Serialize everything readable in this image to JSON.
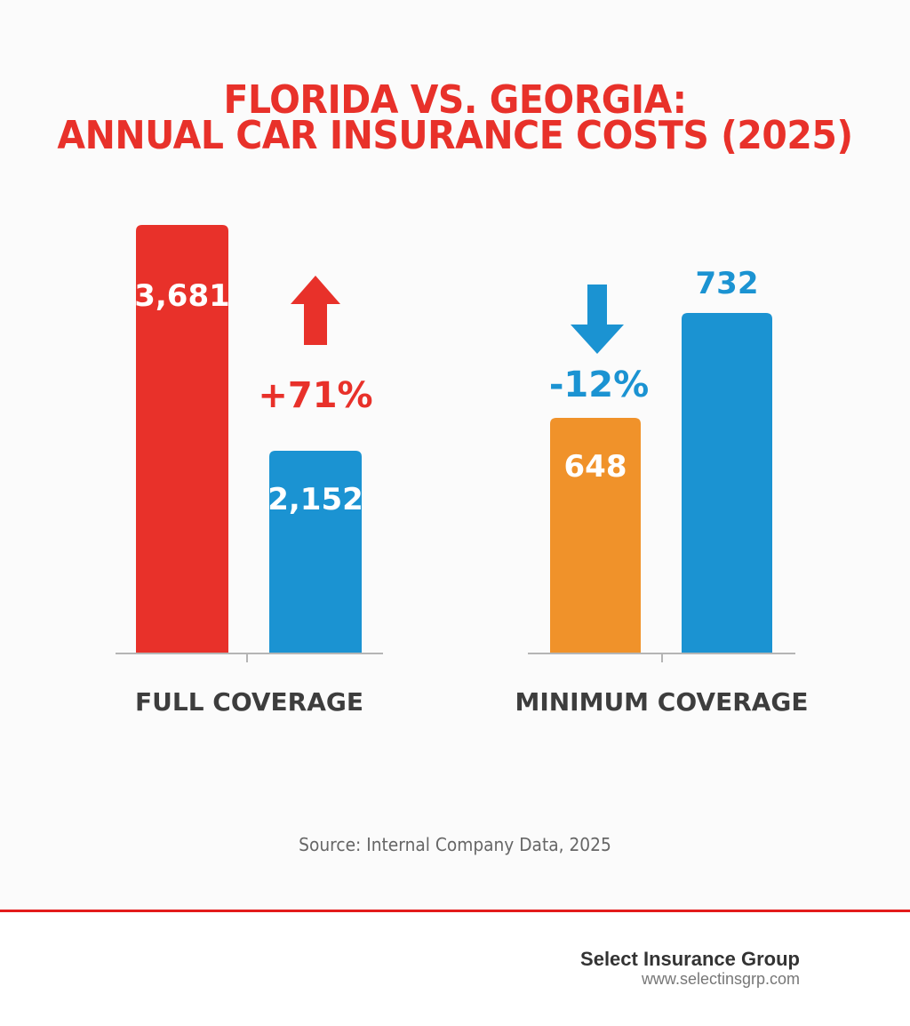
{
  "chart_data": {
    "type": "bar",
    "title": "FLORIDA VS. GEORGIA:",
    "subtitle": "ANNUAL CAR INSURANCE COSTS (2025)",
    "xlabel": "",
    "ylabel": "",
    "grid": false,
    "legend": null,
    "groups": [
      {
        "category": "FULL COVERAGE",
        "bars": [
          {
            "name": "Florida",
            "value": 3681,
            "label": "3,681",
            "color": "#e8312a",
            "label_position": "inside"
          },
          {
            "name": "Georgia",
            "value": 2152,
            "label": "2,152",
            "color": "#1b93d2",
            "label_position": "inside"
          }
        ],
        "annotation": {
          "text": "+71%",
          "arrow": "up",
          "color": "#e8312a"
        }
      },
      {
        "category": "MINIMUM COVERAGE",
        "bars": [
          {
            "name": "Florida",
            "value": 648,
            "label": "648",
            "color": "#f0922a",
            "label_position": "inside"
          },
          {
            "name": "Georgia",
            "value": 732,
            "label": "732",
            "color": "#1b93d2",
            "label_position": "above"
          }
        ],
        "annotation": {
          "text": "-12%",
          "arrow": "down",
          "color": "#1b93d2"
        }
      }
    ]
  },
  "source": "Source: Internal Company Data, 2025",
  "footer": {
    "brand": "Select Insurance Group",
    "url": "www.selectinsgrp.com",
    "accent_color": "#e31b1b"
  }
}
